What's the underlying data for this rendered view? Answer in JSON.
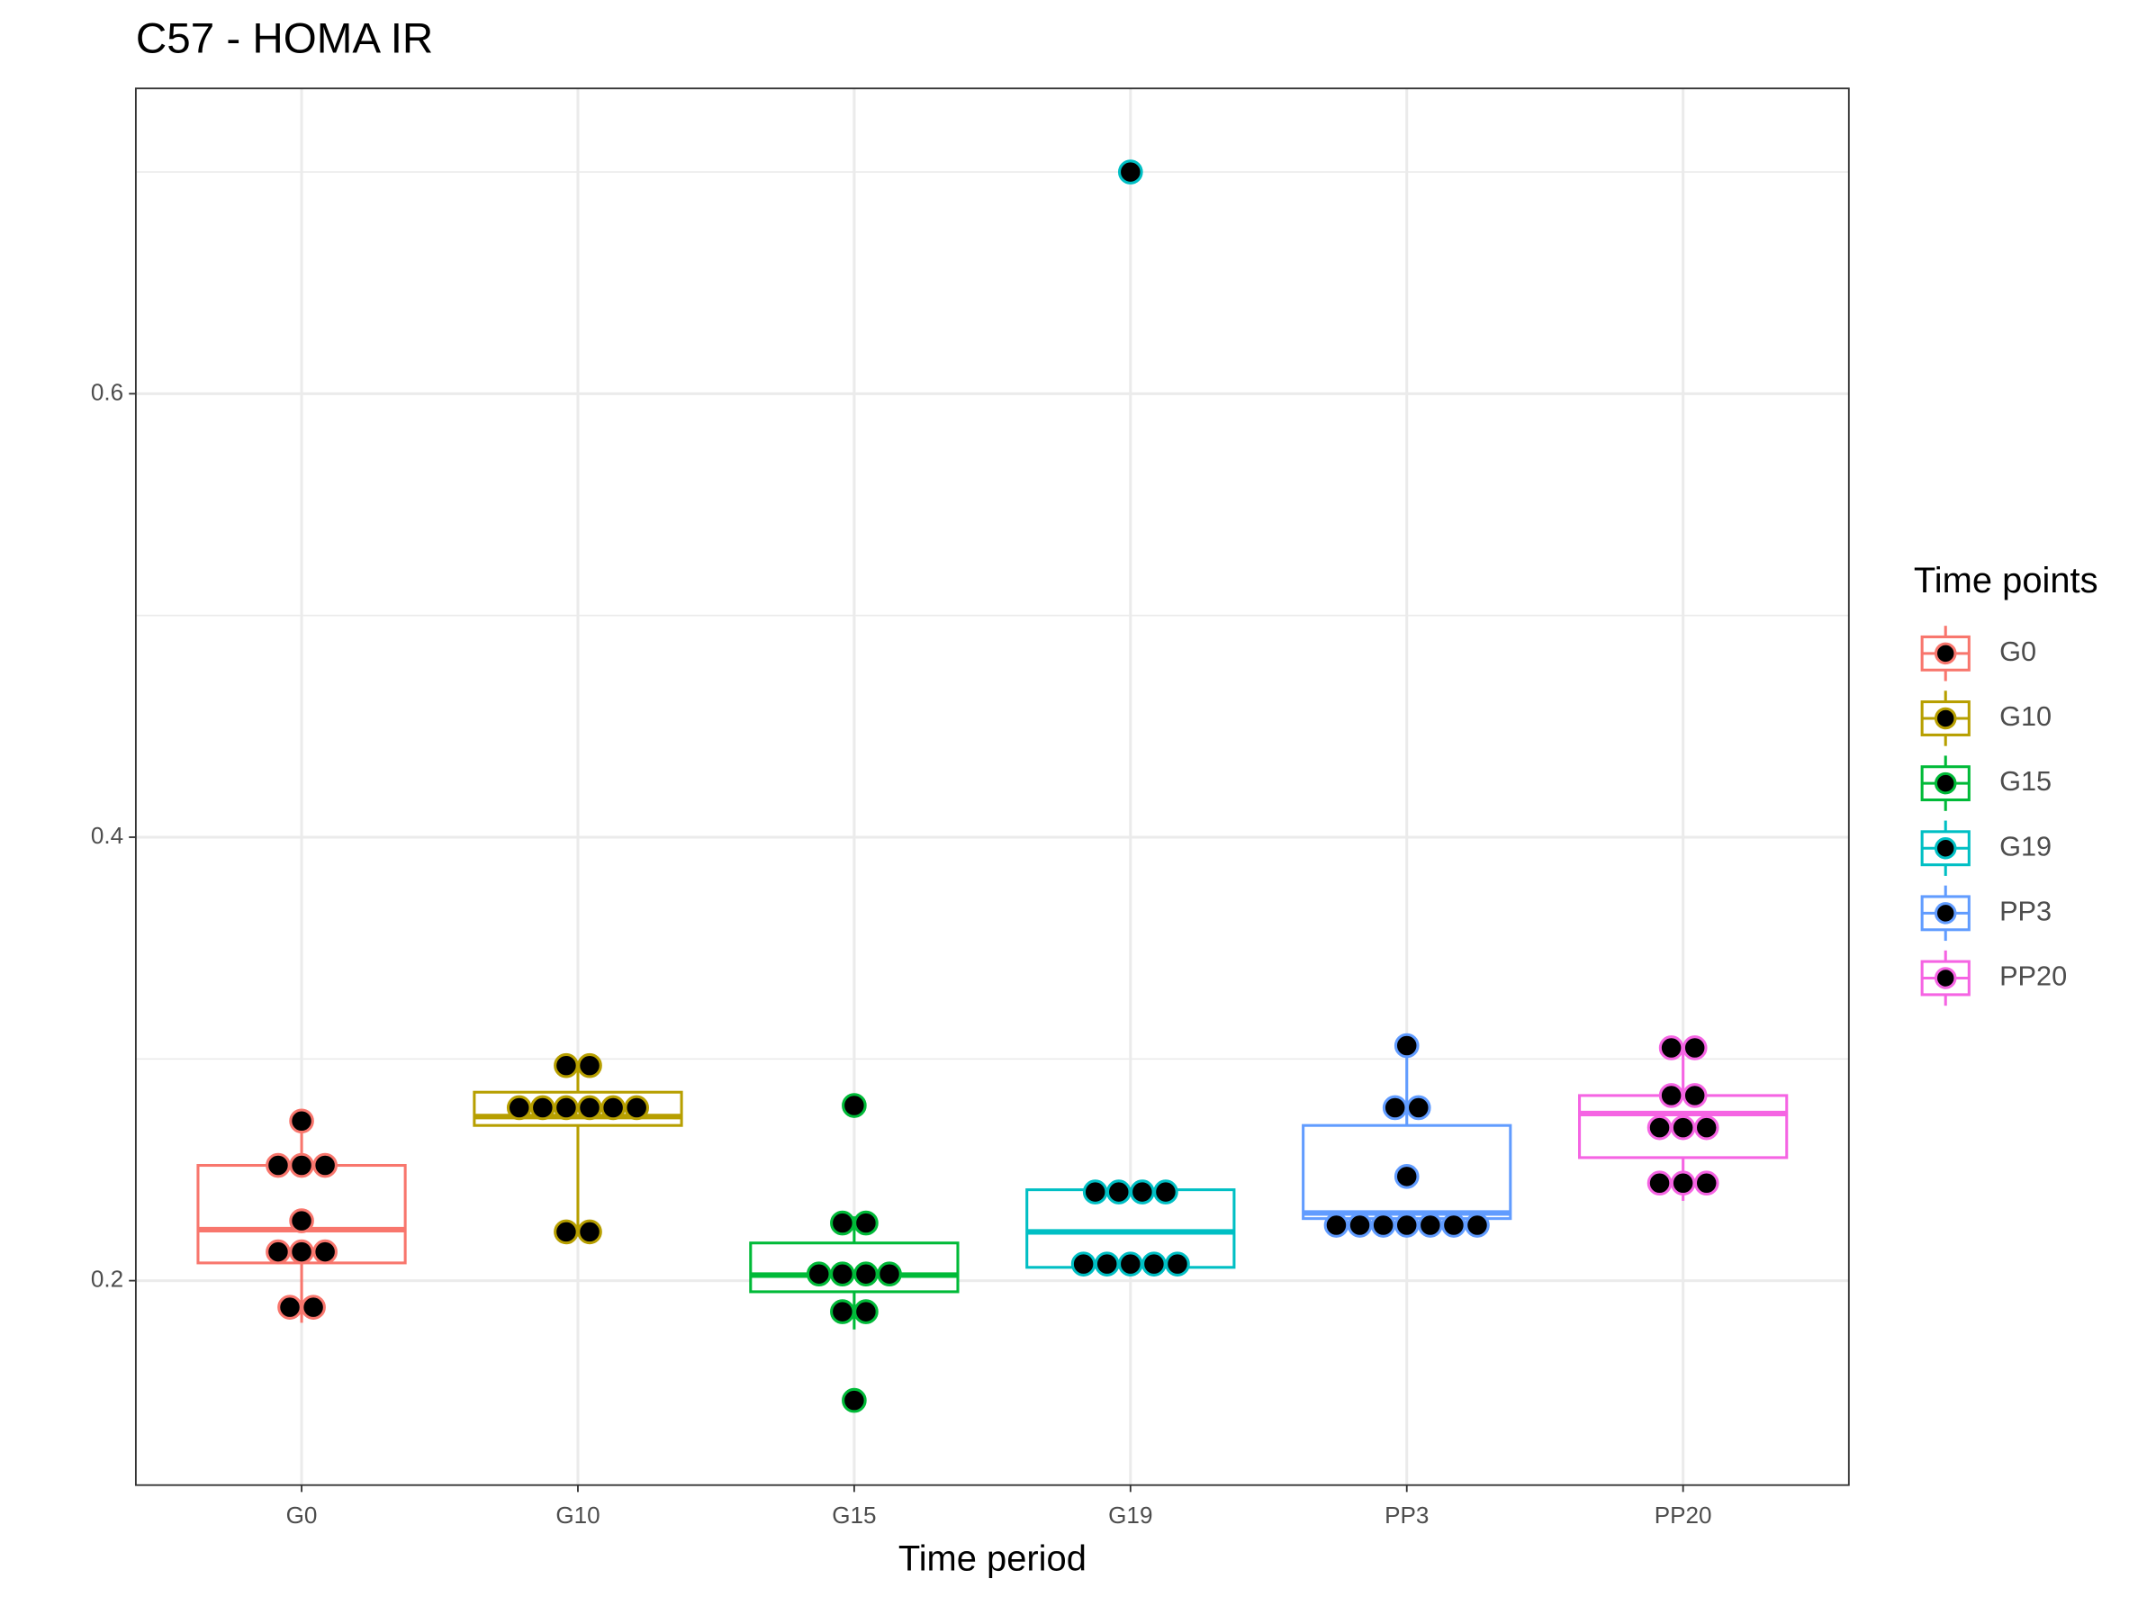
{
  "chart_data": {
    "type": "box",
    "title": "C57 - HOMA IR",
    "x_label": "Time period",
    "legend_title": "Time points",
    "categories": [
      "G0",
      "G10",
      "G15",
      "G19",
      "PP3",
      "PP20"
    ],
    "ylim": [
      0.1078,
      0.7377
    ],
    "yticks": [
      0.2,
      0.4,
      0.6
    ],
    "minor_yticks": [
      0.3,
      0.5,
      0.7
    ],
    "grid": true,
    "legend_position": "right",
    "series": [
      {
        "name": "G0",
        "color": "#F8766D",
        "whisker_low": 0.181,
        "q1": 0.208,
        "median": 0.223,
        "q3": 0.252,
        "whisker_high": 0.272,
        "points": [
          0.272,
          0.252,
          0.252,
          0.252,
          0.227,
          0.213,
          0.213,
          0.213,
          0.188,
          0.188
        ]
      },
      {
        "name": "G10",
        "color": "#B79F00",
        "whisker_low": 0.22,
        "q1": 0.27,
        "median": 0.274,
        "q3": 0.285,
        "whisker_high": 0.297,
        "points": [
          0.297,
          0.297,
          0.278,
          0.278,
          0.278,
          0.278,
          0.278,
          0.278,
          0.222,
          0.222
        ]
      },
      {
        "name": "G15",
        "color": "#00BA38",
        "whisker_low": 0.178,
        "q1": 0.195,
        "median": 0.2025,
        "q3": 0.217,
        "whisker_high": 0.229,
        "points": [
          0.279,
          0.226,
          0.226,
          0.203,
          0.203,
          0.203,
          0.203,
          0.186,
          0.186,
          0.146
        ]
      },
      {
        "name": "G19",
        "color": "#00BFC4",
        "whisker_low": 0.206,
        "q1": 0.206,
        "median": 0.222,
        "q3": 0.241,
        "whisker_high": 0.242,
        "points": [
          0.7,
          0.24,
          0.24,
          0.24,
          0.24,
          0.2075,
          0.2075,
          0.2075,
          0.2075,
          0.2075
        ]
      },
      {
        "name": "PP3",
        "color": "#619CFF",
        "whisker_low": 0.22,
        "q1": 0.228,
        "median": 0.2305,
        "q3": 0.27,
        "whisker_high": 0.306,
        "points": [
          0.306,
          0.278,
          0.278,
          0.247,
          0.225,
          0.225,
          0.225,
          0.225,
          0.225,
          0.225,
          0.225
        ]
      },
      {
        "name": "PP20",
        "color": "#F564E3",
        "whisker_low": 0.236,
        "q1": 0.2555,
        "median": 0.2754,
        "q3": 0.2835,
        "whisker_high": 0.305,
        "points": [
          0.305,
          0.305,
          0.2835,
          0.2835,
          0.269,
          0.269,
          0.269,
          0.244,
          0.244,
          0.244
        ]
      }
    ]
  }
}
